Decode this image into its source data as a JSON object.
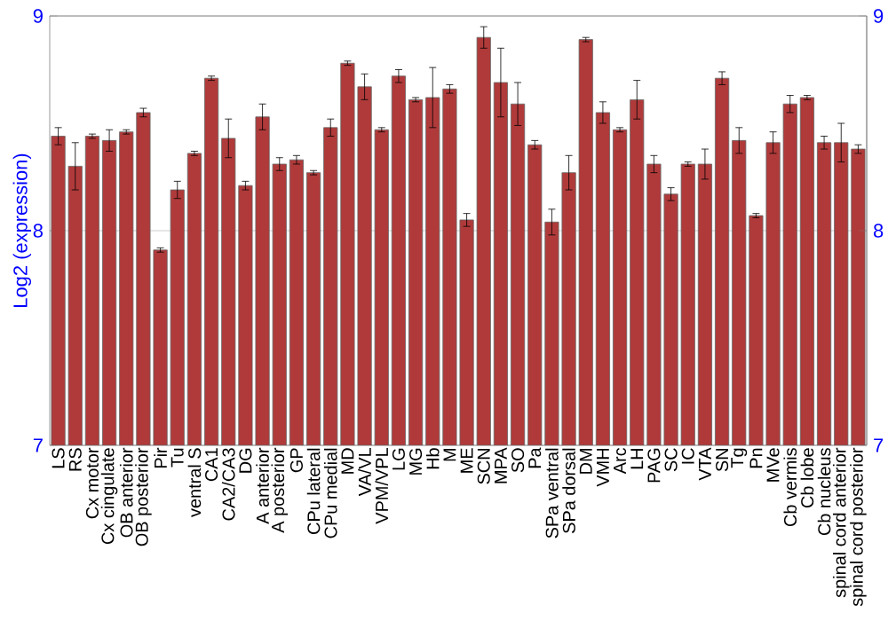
{
  "chart_data": {
    "type": "bar",
    "ylabel": "Log2 (expression)",
    "categories": [
      "LS",
      "RS",
      "Cx motor",
      "Cx cingulate",
      "OB anterior",
      "OB posterior",
      "Pir",
      "Tu",
      "ventral S",
      "CA1",
      "CA2/CA3",
      "DG",
      "A anterior",
      "A posterior",
      "GP",
      "CPu lateral",
      "CPu medial",
      "MD",
      "VA/VL",
      "VPM/VPL",
      "LG",
      "MG",
      "Hb",
      "M",
      "ME",
      "SCN",
      "MPA",
      "SO",
      "Pa",
      "SPa ventral",
      "SPa dorsal",
      "DM",
      "VMH",
      "Arc",
      "LH",
      "PAG",
      "SC",
      "IC",
      "VTA",
      "SN",
      "Tg",
      "Pn",
      "MVe",
      "Cb vermis",
      "Cb lobe",
      "Cb nucleus",
      "spinal cord anterior",
      "spinal cord posterior"
    ],
    "values": [
      8.44,
      8.3,
      8.44,
      8.42,
      8.46,
      8.55,
      7.91,
      8.19,
      8.36,
      8.71,
      8.43,
      8.21,
      8.53,
      8.31,
      8.33,
      8.27,
      8.48,
      8.78,
      8.67,
      8.47,
      8.72,
      8.61,
      8.62,
      8.66,
      8.05,
      8.9,
      8.69,
      8.59,
      8.4,
      8.04,
      8.27,
      8.89,
      8.55,
      8.47,
      8.61,
      8.31,
      8.17,
      8.31,
      8.31,
      8.71,
      8.42,
      8.07,
      8.41,
      8.59,
      8.62,
      8.41,
      8.41,
      8.38
    ],
    "errors": [
      0.04,
      0.11,
      0.01,
      0.05,
      0.01,
      0.02,
      0.01,
      0.04,
      0.01,
      0.01,
      0.09,
      0.02,
      0.06,
      0.03,
      0.02,
      0.01,
      0.04,
      0.01,
      0.06,
      0.01,
      0.03,
      0.01,
      0.14,
      0.02,
      0.03,
      0.05,
      0.16,
      0.1,
      0.02,
      0.06,
      0.08,
      0.01,
      0.05,
      0.01,
      0.09,
      0.04,
      0.03,
      0.01,
      0.07,
      0.03,
      0.06,
      0.01,
      0.05,
      0.04,
      0.01,
      0.03,
      0.09,
      0.02
    ],
    "color": "#b03a3a",
    "ylim": [
      7,
      9
    ],
    "yticks": [
      7,
      8,
      9
    ],
    "y2lim": [
      7,
      9
    ],
    "y2ticks": [
      7,
      8,
      9
    ],
    "grid": "y"
  }
}
